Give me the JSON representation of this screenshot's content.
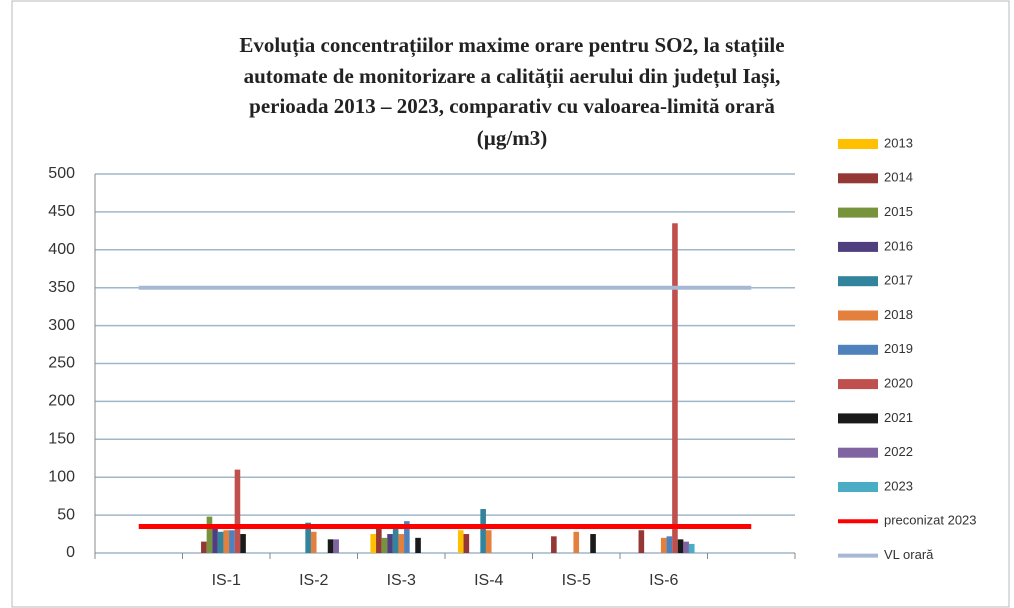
{
  "chart_data": {
    "type": "bar",
    "title": [
      "Evoluția concentrațiilor maxime orare pentru SO2, la stațiile",
      "automate de monitorizare a calității aerului din județul Iași,",
      "perioada 2013 – 2023, comparativ cu valoarea-limită orară",
      "(µg/m3)"
    ],
    "categories": [
      null,
      "IS-1",
      "IS-2",
      "IS-3",
      "IS-4",
      "IS-5",
      "IS-6",
      null
    ],
    "ylim": [
      0,
      500
    ],
    "yticks": [
      0,
      50,
      100,
      150,
      200,
      250,
      300,
      350,
      400,
      450,
      500
    ],
    "grid": true,
    "legend": "right",
    "series": [
      {
        "name": "2013",
        "color": "#ffc000",
        "values": [
          null,
          null,
          null,
          25,
          30,
          null,
          null,
          null
        ]
      },
      {
        "name": "2014",
        "color": "#953735",
        "values": [
          null,
          15,
          null,
          35,
          25,
          22,
          30,
          null
        ]
      },
      {
        "name": "2015",
        "color": "#77933c",
        "values": [
          null,
          48,
          null,
          20,
          null,
          null,
          null,
          null
        ]
      },
      {
        "name": "2016",
        "color": "#4f3f7f",
        "values": [
          null,
          33,
          null,
          25,
          null,
          null,
          null,
          null
        ]
      },
      {
        "name": "2017",
        "color": "#31849b",
        "values": [
          null,
          28,
          40,
          38,
          58,
          null,
          null,
          null
        ]
      },
      {
        "name": "2018",
        "color": "#e3803e",
        "values": [
          null,
          30,
          28,
          25,
          30,
          28,
          20,
          null
        ]
      },
      {
        "name": "2019",
        "color": "#4f81bd",
        "values": [
          null,
          30,
          null,
          42,
          null,
          null,
          22,
          null
        ]
      },
      {
        "name": "2020",
        "color": "#c0504d",
        "values": [
          null,
          110,
          null,
          null,
          null,
          null,
          435,
          null
        ]
      },
      {
        "name": "2021",
        "color": "#1a1a1a",
        "values": [
          null,
          25,
          18,
          20,
          null,
          25,
          18,
          null
        ]
      },
      {
        "name": "2022",
        "color": "#8064a2",
        "values": [
          null,
          null,
          18,
          null,
          null,
          null,
          15,
          null
        ]
      },
      {
        "name": "2023",
        "color": "#4bacc6",
        "values": [
          null,
          null,
          null,
          null,
          null,
          null,
          12,
          null
        ]
      },
      {
        "name": "preconizat 2023",
        "color": "#ff0000",
        "type": "line",
        "values": [
          35,
          35,
          35,
          35,
          35,
          35,
          35,
          35
        ]
      },
      {
        "name": "VL orară",
        "color": "#a6b8d4",
        "type": "line",
        "values": [
          350,
          350,
          350,
          350,
          350,
          350,
          350,
          350
        ]
      }
    ]
  }
}
